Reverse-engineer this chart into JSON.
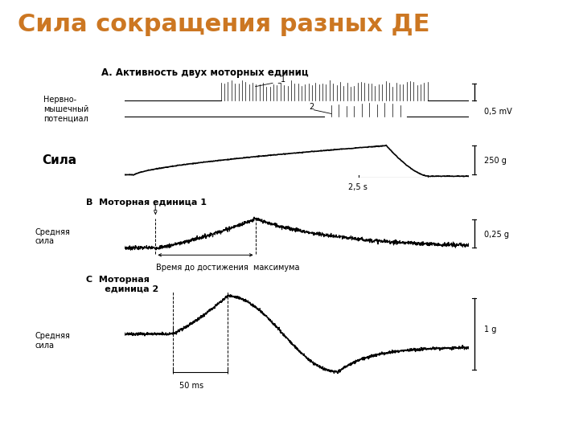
{
  "title": "Сила сокращения разных ДЕ",
  "title_color": "#CC7722",
  "title_fontsize": 22,
  "bg_color": "#ffffff",
  "section_a_label": "А. Активность двух моторных единиц",
  "section_b_label": "В  Моторная единица 1",
  "section_c_label": "С  Моторная\n      единица 2",
  "label_nmp": "Нервно-\nмышечный\nпотенциал",
  "label_sila": "Сила",
  "label_srednyaya_b": "Средняя\nсила",
  "label_srednyaya_c": "Средняя\nсила",
  "label_time_b": "Время до достижения  максимума",
  "label_scale_05mv": "0,5 mV",
  "label_scale_250g": "250 g",
  "label_scale_25s": "2,5 s",
  "label_scale_025g": "0,25 g",
  "label_scale_1g": "1 g",
  "label_scale_50ms": "50 ms"
}
